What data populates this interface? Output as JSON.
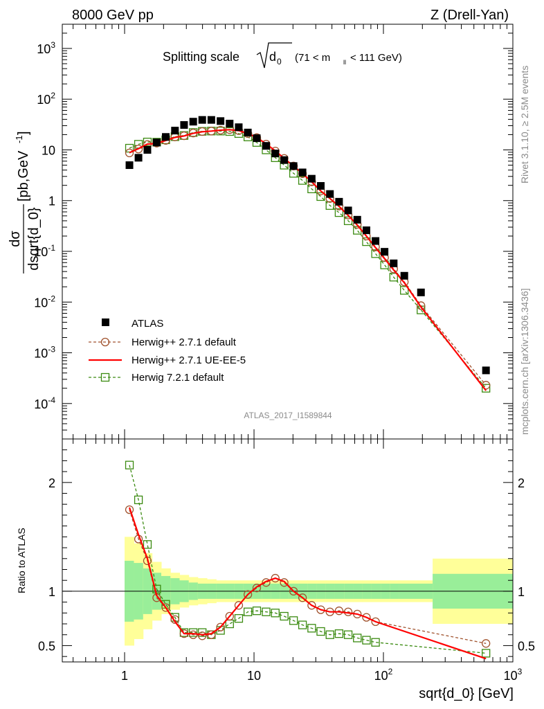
{
  "header": {
    "left": "8000 GeV pp",
    "right": "Z (Drell-Yan)"
  },
  "plot_title": {
    "main": "Splitting scale",
    "symbol": "d",
    "subscript": "0",
    "range_pre": "(71 < m",
    "range_sub": "ll",
    "range_post": "< 111 GeV)"
  },
  "side_labels": {
    "rivet": "Rivet 3.1.10, ≥ 2.5M events",
    "mcplots": "mcplots.cern.ch [arXiv:1306.3436]"
  },
  "watermark": "ATLAS_2017_I1589844",
  "axes": {
    "y_top_numerator": "dσ",
    "y_top_denominator": "dsqrt{d_0}",
    "y_top_unit_pre": "[pb,GeV",
    "y_top_unit_exp": "-1",
    "y_top_unit_post": "]",
    "y_bottom": "Ratio to ATLAS",
    "x": "sqrt{d_0} [GeV]"
  },
  "legend": [
    {
      "label": "ATLAS"
    },
    {
      "label": "Herwig++ 2.7.1 default"
    },
    {
      "label": "Herwig++ 2.7.1 UE-EE-5"
    },
    {
      "label": "Herwig 7.2.1 default"
    }
  ],
  "colors": {
    "atlas": "#000000",
    "herwigpp_default": "#a0522d",
    "herwigpp_ueee5": "#ff0000",
    "herwig7": "#3a8a10",
    "band_inner": "#99ee99",
    "band_outer": "#ffff99"
  },
  "chart_data": [
    {
      "type": "scatter",
      "panel": "main",
      "x_scale": "log",
      "y_scale": "log",
      "xlim": [
        0.33,
        1000
      ],
      "ylim": [
        2e-05,
        3000
      ],
      "x_tick_labels": [
        "1",
        "10",
        "10^2",
        "10^3"
      ],
      "y_tick_labels": [
        "10^-4",
        "10^-3",
        "10^-2",
        "10^-1",
        "1",
        "10",
        "10^2",
        "10^3"
      ],
      "x": [
        1.09,
        1.28,
        1.5,
        1.77,
        2.08,
        2.45,
        2.88,
        3.39,
        3.98,
        4.68,
        5.51,
        6.48,
        7.62,
        8.96,
        10.5,
        12.4,
        14.6,
        17.1,
        20.2,
        23.7,
        27.9,
        32.8,
        38.6,
        45.4,
        53.4,
        62.8,
        73.9,
        86.9,
        102,
        120,
        145,
        195,
        620
      ],
      "series": [
        {
          "name": "ATLAS",
          "values": [
            5.0,
            7.0,
            10.0,
            14.0,
            18.0,
            24.0,
            31.0,
            36.0,
            39.0,
            39.0,
            37.0,
            33.0,
            28.0,
            22.0,
            17.0,
            12.0,
            8.5,
            6.3,
            4.8,
            3.6,
            2.7,
            1.95,
            1.35,
            0.95,
            0.64,
            0.42,
            0.26,
            0.16,
            0.098,
            0.058,
            0.033,
            0.0155,
            0.00045
          ]
        },
        {
          "name": "Herwig++ 2.7.1 default",
          "values": [
            8.7,
            10.4,
            12.8,
            13.6,
            15.4,
            18.0,
            19.0,
            21.5,
            23.0,
            23.5,
            24.5,
            25.0,
            24.0,
            21.0,
            17.5,
            13.0,
            9.5,
            6.8,
            4.8,
            3.4,
            2.35,
            1.55,
            1.1,
            0.78,
            0.52,
            0.34,
            0.2,
            0.122,
            0.075,
            0.045,
            0.025,
            0.0085,
            0.00023
          ]
        },
        {
          "name": "Herwig++ 2.7.1 UE-EE-5",
          "values": [
            8.8,
            10.6,
            13.0,
            13.4,
            15.3,
            17.6,
            18.8,
            21.2,
            22.8,
            23.5,
            24.5,
            25.0,
            24.0,
            21.0,
            17.6,
            13.1,
            9.6,
            6.8,
            4.8,
            3.4,
            2.35,
            1.55,
            1.1,
            0.77,
            0.51,
            0.33,
            0.2,
            0.118,
            0.072,
            0.043,
            0.024,
            0.008,
            0.00018
          ]
        },
        {
          "name": "Herwig 7.2.1 default",
          "values": [
            10.8,
            12.9,
            14.3,
            14.2,
            15.8,
            18.2,
            19.2,
            22.0,
            23.2,
            23.5,
            23.5,
            23.0,
            21.0,
            18.0,
            14.0,
            10.0,
            7.0,
            5.0,
            3.45,
            2.5,
            1.7,
            1.2,
            0.8,
            0.58,
            0.4,
            0.26,
            0.155,
            0.09,
            0.054,
            0.031,
            0.017,
            0.007,
            0.0002
          ]
        }
      ]
    },
    {
      "type": "line",
      "panel": "ratio",
      "x_scale": "log",
      "xlim": [
        0.33,
        1000
      ],
      "ylim": [
        0.35,
        2.4
      ],
      "x_tick_labels": [
        "1",
        "10",
        "10^2",
        "10^3"
      ],
      "y_tick_labels": [
        "0.5",
        "1",
        "2"
      ],
      "ylabel": "Ratio to ATLAS",
      "xlabel": "sqrt{d_0} [GeV]",
      "reference_line": 1,
      "x": [
        1.09,
        1.28,
        1.5,
        1.77,
        2.08,
        2.45,
        2.88,
        3.39,
        3.98,
        4.68,
        5.51,
        6.48,
        7.62,
        8.96,
        10.5,
        12.4,
        14.6,
        17.1,
        20.2,
        23.7,
        27.9,
        32.8,
        38.6,
        45.4,
        53.4,
        62.8,
        73.9,
        86.9,
        620
      ],
      "series": [
        {
          "name": "Herwig++ 2.7.1 default",
          "values": [
            1.75,
            1.48,
            1.28,
            0.94,
            0.85,
            0.74,
            0.61,
            0.6,
            0.59,
            0.6,
            0.67,
            0.77,
            0.87,
            0.97,
            1.03,
            1.08,
            1.12,
            1.08,
            1.0,
            0.94,
            0.87,
            0.83,
            0.81,
            0.82,
            0.81,
            0.79,
            0.76,
            0.72,
            0.52
          ]
        },
        {
          "name": "Herwig++ 2.7.1 UE-EE-5",
          "values": [
            1.77,
            1.52,
            1.3,
            0.96,
            0.85,
            0.72,
            0.61,
            0.61,
            0.6,
            0.61,
            0.67,
            0.77,
            0.87,
            0.97,
            1.04,
            1.09,
            1.12,
            1.09,
            1.0,
            0.94,
            0.87,
            0.83,
            0.81,
            0.81,
            0.8,
            0.79,
            0.76,
            0.72,
            0.38
          ]
        },
        {
          "name": "Herwig 7.2.1 default",
          "values": [
            2.16,
            1.84,
            1.43,
            1.02,
            0.88,
            0.76,
            0.62,
            0.62,
            0.62,
            0.6,
            0.64,
            0.7,
            0.75,
            0.81,
            0.82,
            0.81,
            0.8,
            0.77,
            0.73,
            0.69,
            0.66,
            0.63,
            0.6,
            0.61,
            0.6,
            0.57,
            0.55,
            0.53,
            0.43
          ]
        }
      ],
      "uncertainty_band": {
        "edges": [
          1.0,
          1.18,
          1.39,
          1.63,
          1.92,
          2.26,
          2.66,
          3.13,
          3.68,
          4.33,
          5.1,
          6.0,
          7.05,
          8.3,
          9.77,
          11.5,
          13.5,
          15.9,
          18.7,
          22.0,
          25.9,
          30.5,
          35.9,
          42.2,
          49.7,
          58.5,
          68.8,
          81.0,
          95.3,
          112,
          132,
          240,
          1000
        ],
        "inner": [
          0.28,
          0.26,
          0.21,
          0.17,
          0.14,
          0.12,
          0.1,
          0.08,
          0.07,
          0.07,
          0.07,
          0.07,
          0.07,
          0.07,
          0.07,
          0.07,
          0.07,
          0.07,
          0.07,
          0.07,
          0.07,
          0.07,
          0.07,
          0.07,
          0.07,
          0.07,
          0.07,
          0.07,
          0.07,
          0.07,
          0.07,
          0.16
        ],
        "outer": [
          0.5,
          0.44,
          0.35,
          0.27,
          0.21,
          0.17,
          0.15,
          0.13,
          0.12,
          0.11,
          0.1,
          0.1,
          0.1,
          0.1,
          0.1,
          0.1,
          0.1,
          0.1,
          0.1,
          0.1,
          0.1,
          0.1,
          0.1,
          0.1,
          0.1,
          0.1,
          0.1,
          0.1,
          0.1,
          0.1,
          0.1,
          0.3
        ]
      }
    }
  ]
}
